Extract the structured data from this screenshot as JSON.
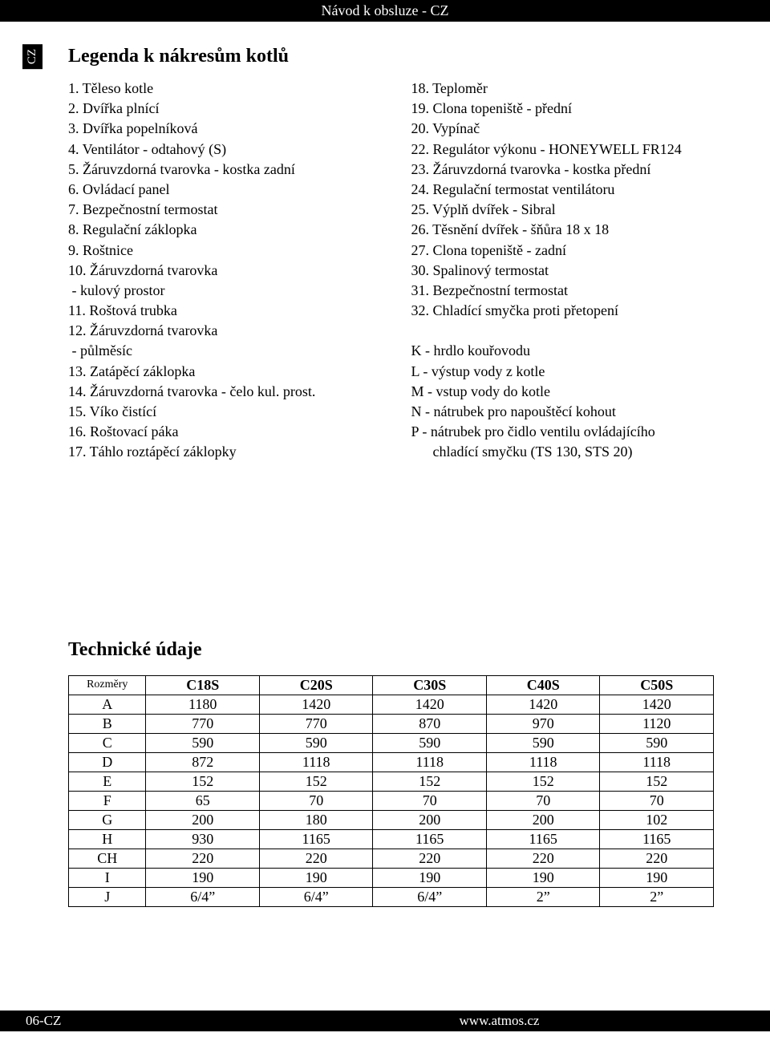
{
  "header": {
    "title": "Návod k obsluze - CZ"
  },
  "side_tab": {
    "label": "CZ"
  },
  "legend": {
    "title": "Legenda k nákresům kotlů",
    "left": [
      "1. Těleso kotle",
      "2. Dvířka plnící",
      "3. Dvířka popelníková",
      "4. Ventilátor - odtahový (S)",
      "5. Žáruvzdorná tvarovka - kostka zadní",
      "6. Ovládací panel",
      "7. Bezpečnostní termostat",
      "8. Regulační záklopka",
      "9. Roštnice",
      "10. Žáruvzdorná tvarovka",
      " - kulový prostor",
      "11. Roštová trubka",
      "12. Žáruvzdorná tvarovka",
      " - půlměsíc",
      "13. Zatápěcí záklopka",
      "14. Žáruvzdorná tvarovka - čelo kul. prost.",
      "15. Víko čistící",
      "16. Roštovací páka",
      "17. Táhlo roztápěcí záklopky"
    ],
    "right": [
      "18. Teploměr",
      "19. Clona topeniště - přední",
      "20. Vypínač",
      "22. Regulátor výkonu - HONEYWELL FR124",
      "23. Žáruvzdorná tvarovka - kostka přední",
      "24. Regulační termostat ventilátoru",
      "25. Výplň dvířek - Sibral",
      "26. Těsnění dvířek - šňůra 18 x 18",
      "27. Clona topeniště - zadní",
      "30. Spalinový termostat",
      "31. Bezpečnostní termostat",
      "32. Chladící smyčka proti přetopení",
      "",
      "K - hrdlo kouřovodu",
      "L - výstup vody z kotle",
      "M - vstup vody do kotle",
      "N - nátrubek pro napouštěcí kohout",
      "P - nátrubek pro čidlo ventilu ovládajícího",
      "      chladící smyčku (TS 130, STS 20)"
    ]
  },
  "table": {
    "title": "Technické údaje",
    "corner": "Rozměry",
    "columns": [
      "C18S",
      "C20S",
      "C30S",
      "C40S",
      "C50S"
    ],
    "rows": [
      {
        "label": "A",
        "cells": [
          "1180",
          "1420",
          "1420",
          "1420",
          "1420"
        ]
      },
      {
        "label": "B",
        "cells": [
          "770",
          "770",
          "870",
          "970",
          "1120"
        ]
      },
      {
        "label": "C",
        "cells": [
          "590",
          "590",
          "590",
          "590",
          "590"
        ]
      },
      {
        "label": "D",
        "cells": [
          "872",
          "1118",
          "1118",
          "1118",
          "1118"
        ]
      },
      {
        "label": "E",
        "cells": [
          "152",
          "152",
          "152",
          "152",
          "152"
        ]
      },
      {
        "label": "F",
        "cells": [
          "65",
          "70",
          "70",
          "70",
          "70"
        ]
      },
      {
        "label": "G",
        "cells": [
          "200",
          "180",
          "200",
          "200",
          "102"
        ]
      },
      {
        "label": "H",
        "cells": [
          "930",
          "1165",
          "1165",
          "1165",
          "1165"
        ]
      },
      {
        "label": "CH",
        "cells": [
          "220",
          "220",
          "220",
          "220",
          "220"
        ]
      },
      {
        "label": "I",
        "cells": [
          "190",
          "190",
          "190",
          "190",
          "190"
        ]
      },
      {
        "label": "J",
        "cells": [
          "6/4”",
          "6/4”",
          "6/4”",
          "2”",
          "2”"
        ]
      }
    ],
    "border_color": "#000000",
    "header_fontweight": "bold"
  },
  "footer": {
    "left": "06-CZ",
    "right": "www.atmos.cz"
  },
  "colors": {
    "page_bg": "#ffffff",
    "bar_bg": "#000000",
    "bar_fg": "#ffffff",
    "text": "#000000"
  }
}
